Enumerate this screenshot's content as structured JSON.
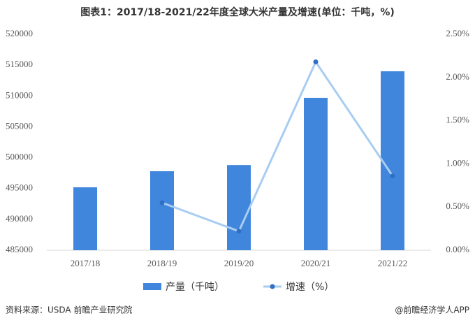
{
  "chart_data": {
    "type": "bar",
    "title": "图表1：2017/18-2021/22年度全球大米产量及增速(单位：千吨，%)",
    "categories": [
      "2017/18",
      "2018/19",
      "2019/20",
      "2020/21",
      "2021/22"
    ],
    "series": [
      {
        "name": "产量（千吨）",
        "type": "bar",
        "color": "#4086dc",
        "values": [
          495200,
          497800,
          498800,
          509700,
          514000
        ]
      },
      {
        "name": "增速（%）",
        "type": "line",
        "axis": "y2",
        "color": "#a8cdf1",
        "marker_color": "#2f6fc6",
        "values": [
          null,
          0.55,
          0.22,
          2.18,
          0.86
        ]
      }
    ],
    "ylim": [
      485000,
      520000
    ],
    "yticks": [
      485000,
      490000,
      495000,
      500000,
      505000,
      510000,
      515000,
      520000
    ],
    "y2lim": [
      0,
      2.5
    ],
    "y2ticks": [
      {
        "value": 0,
        "label": "0.00%"
      },
      {
        "value": 0.5,
        "label": "0.50%"
      },
      {
        "value": 1,
        "label": "1.00%"
      },
      {
        "value": 1.5,
        "label": "1.50%"
      },
      {
        "value": 2,
        "label": "2.00%"
      },
      {
        "value": 2.5,
        "label": "2.50%"
      }
    ],
    "legend": "bottom",
    "source": "资料来源：USDA 前瞻产业研究院",
    "credit": "@前瞻经济学人APP"
  }
}
